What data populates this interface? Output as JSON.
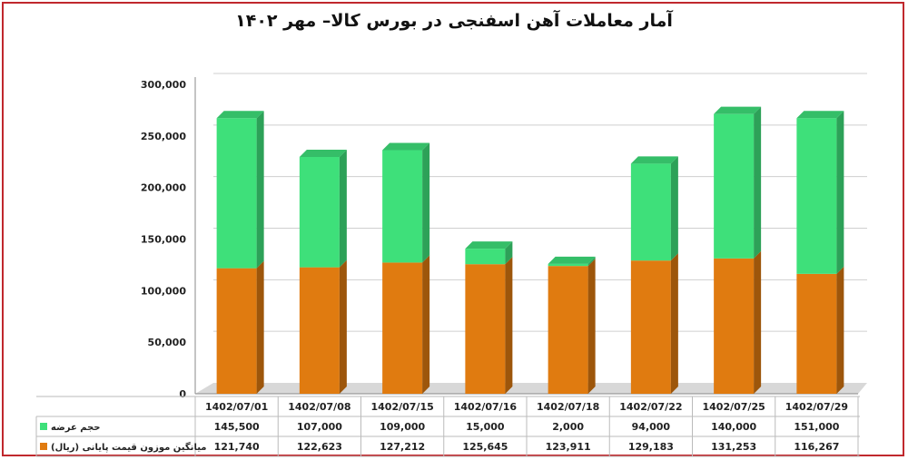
{
  "chart_data": {
    "type": "bar",
    "stacked": true,
    "title": "آمار معاملات آهن اسفنجی در بورس کالا– مهر ۱۴۰۲",
    "categories": [
      "1402/07/01",
      "1402/07/08",
      "1402/07/15",
      "1402/07/16",
      "1402/07/18",
      "1402/07/22",
      "1402/07/25",
      "1402/07/29"
    ],
    "series": [
      {
        "name": "میانگین موزون قیمت پایانی  (ریال)",
        "color": "#e07b10",
        "values": [
          121740,
          122623,
          127212,
          125645,
          123911,
          129183,
          131253,
          116267
        ],
        "labels": [
          "121,740",
          "122,623",
          "127,212",
          "125,645",
          "123,911",
          "129,183",
          "131,253",
          "116,267"
        ]
      },
      {
        "name": "حجم عرضه",
        "color": "#3ee07a",
        "values": [
          145500,
          107000,
          109000,
          15000,
          2000,
          94000,
          140000,
          151000
        ],
        "labels": [
          "145,500",
          "107,000",
          "109,000",
          "15,000",
          "2,000",
          "94,000",
          "140,000",
          "151,000"
        ]
      }
    ],
    "yticks": [
      "0",
      "50,000",
      "100,000",
      "150,000",
      "200,000",
      "250,000",
      "300,000"
    ],
    "ylim": [
      0,
      300000
    ],
    "grid": true,
    "legend": "data-table-below"
  }
}
